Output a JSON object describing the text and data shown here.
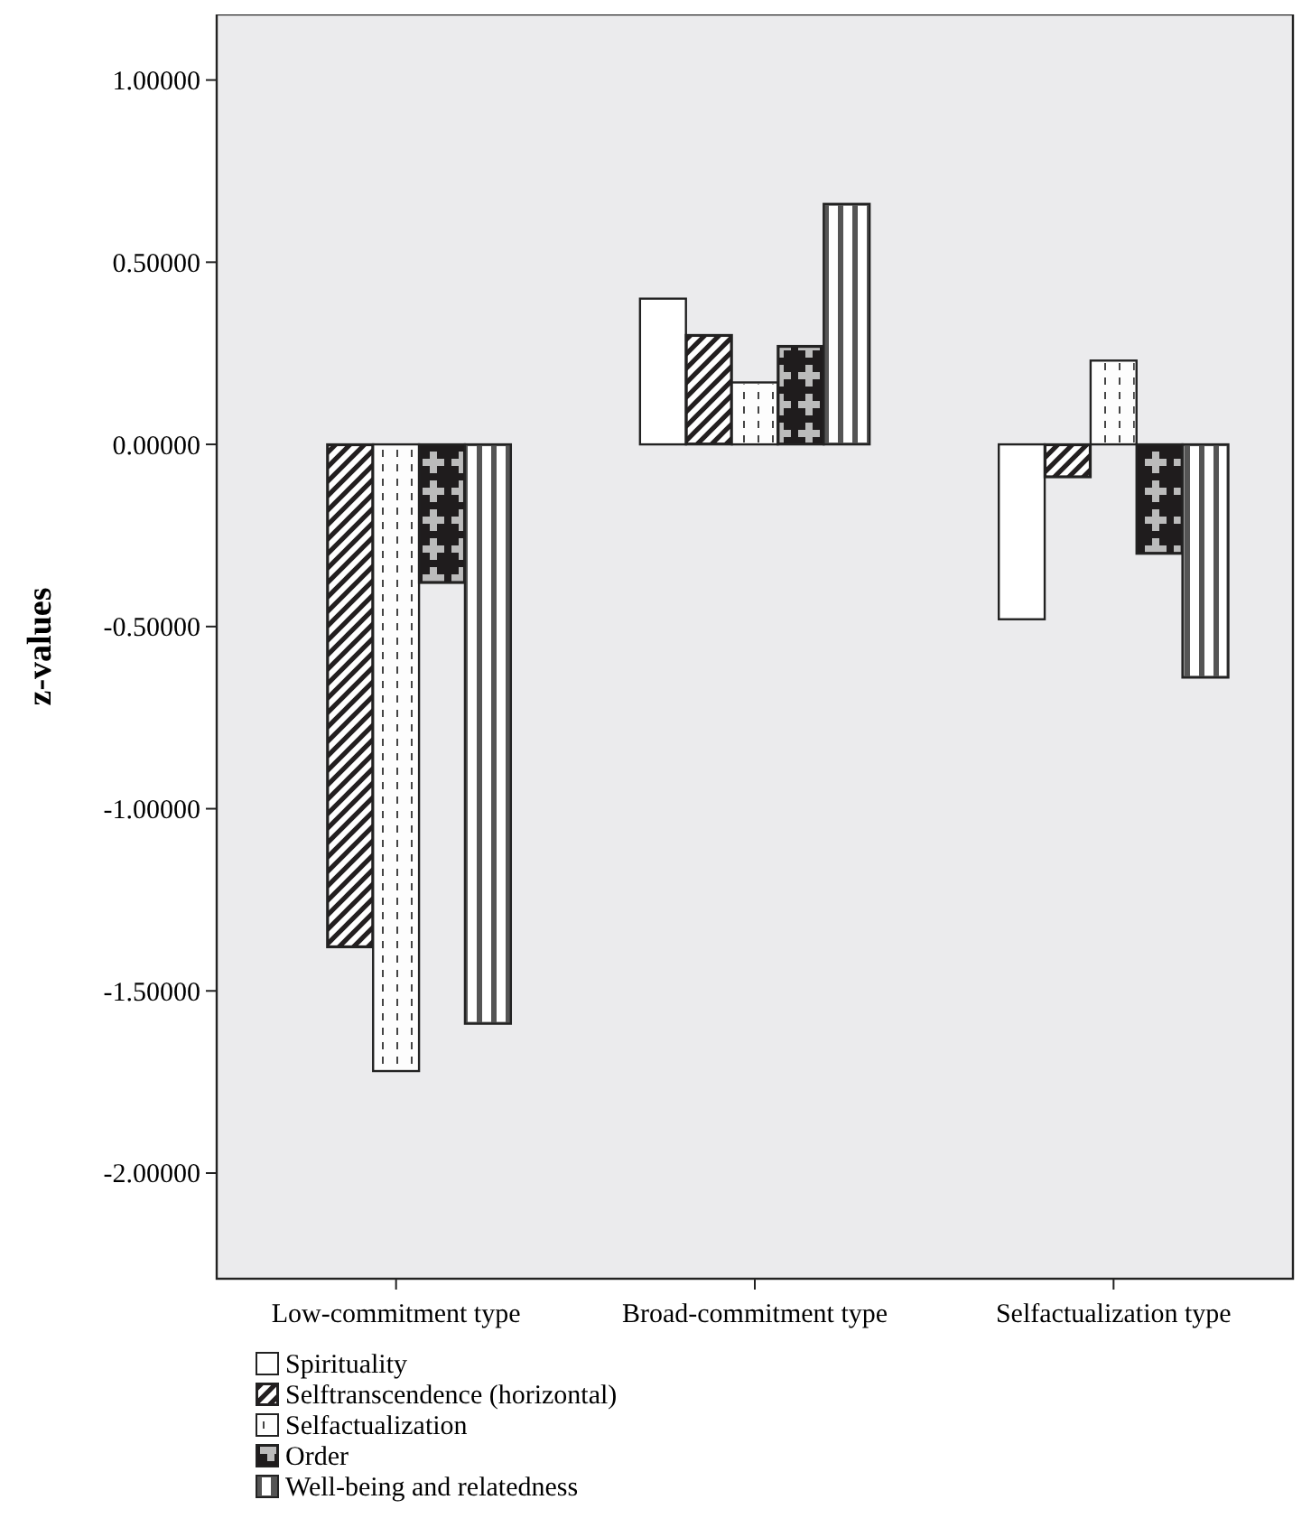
{
  "chart_data": {
    "type": "bar",
    "ylabel": "z-values",
    "categories": [
      "Low-commitment type",
      "Broad-commitment type",
      "Selfactualization type"
    ],
    "series": [
      {
        "name": "Spirituality",
        "color": "#ffffff",
        "values": [
          null,
          0.4,
          -0.48
        ]
      },
      {
        "name": "Selftranscendence (horizontal)",
        "color": "#231f20",
        "values": [
          -1.38,
          0.3,
          -0.09
        ]
      },
      {
        "name": "Selfactualization",
        "color": "#fdfdfd",
        "values": [
          -1.72,
          0.17,
          0.23
        ]
      },
      {
        "name": "Order",
        "color": "#1f1c1d",
        "values": [
          -0.38,
          0.27,
          -0.3
        ]
      },
      {
        "name": "Well-being and relatedness",
        "color": "#555555",
        "values": [
          -1.59,
          0.66,
          -0.64
        ]
      }
    ],
    "ylim": [
      -2.29,
      1.18
    ],
    "yticks": [
      {
        "value": -2,
        "label": "-2.00000"
      },
      {
        "value": -1.5,
        "label": "-1.50000"
      },
      {
        "value": -1,
        "label": "-1.00000"
      },
      {
        "value": -0.5,
        "label": "-0.50000"
      },
      {
        "value": 0,
        "label": "0.00000"
      },
      {
        "value": 0.5,
        "label": "0.50000"
      },
      {
        "value": 1,
        "label": "1.00000"
      }
    ],
    "legend": "bottom left",
    "grid": false
  }
}
